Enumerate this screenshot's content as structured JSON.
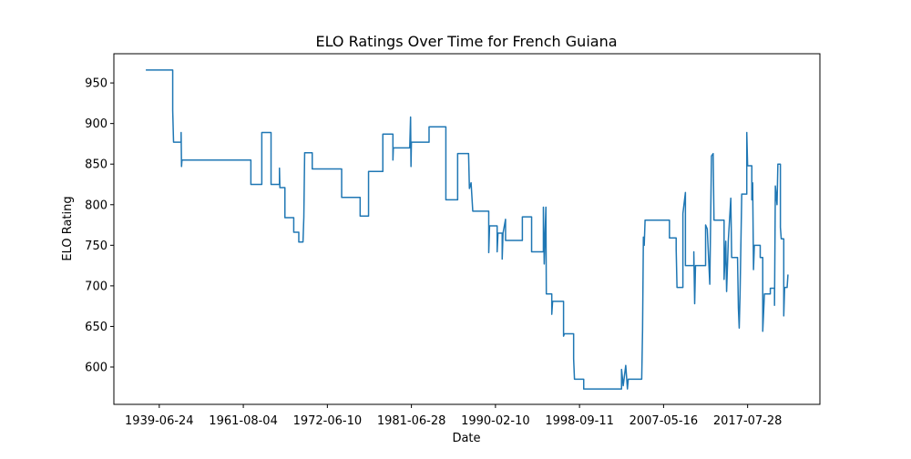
{
  "chart_data": {
    "type": "line",
    "title": "ELO Ratings Over Time for French Guiana",
    "x_label": "Date",
    "y_label": "ELO Rating",
    "color": "#1f77b4",
    "xlim": [
      46,
      886
    ],
    "xticks": [
      {
        "value": 100,
        "label": "1939-06-24"
      },
      {
        "value": 200,
        "label": "1961-08-04"
      },
      {
        "value": 300,
        "label": "1972-06-10"
      },
      {
        "value": 400,
        "label": "1981-06-28"
      },
      {
        "value": 500,
        "label": "1990-02-10"
      },
      {
        "value": 600,
        "label": "1998-09-11"
      },
      {
        "value": 700,
        "label": "2007-05-16"
      },
      {
        "value": 800,
        "label": "2017-07-28"
      }
    ],
    "ylim": [
      554,
      986
    ],
    "yticks": [
      600,
      650,
      700,
      750,
      800,
      850,
      900,
      950
    ],
    "x": [
      84,
      116,
      116,
      117,
      126,
      126,
      126.5,
      127,
      209,
      209,
      222,
      222,
      233,
      233,
      243,
      243,
      243.5,
      249.5,
      249.5,
      260,
      260,
      266,
      266,
      271,
      272,
      273,
      282,
      282,
      317,
      317,
      339,
      339,
      349,
      349,
      366,
      366,
      378,
      378,
      378.5,
      398,
      399,
      399.5,
      400,
      421,
      421,
      441,
      441,
      455,
      455,
      468,
      469,
      471,
      473,
      492,
      492,
      493,
      502,
      502,
      503,
      508,
      508,
      509,
      512,
      512,
      532,
      532,
      543,
      543,
      557,
      557,
      558,
      560,
      560.5,
      567,
      567,
      568,
      581,
      581,
      582,
      593,
      593,
      594,
      605,
      605,
      650,
      650,
      652,
      655,
      657,
      658,
      674,
      675,
      676,
      677,
      678,
      707,
      707,
      715,
      715,
      716,
      723,
      723,
      726,
      726,
      736,
      736,
      737,
      738,
      750,
      750,
      752,
      755,
      757,
      759,
      760,
      772,
      772,
      774,
      775,
      777,
      780,
      781,
      788,
      789,
      790,
      791,
      793,
      799,
      799,
      800,
      805,
      805,
      806,
      807,
      808,
      815,
      815,
      818,
      818,
      820,
      827,
      827,
      832,
      832,
      833,
      835,
      836,
      839,
      839,
      840,
      843,
      843,
      844,
      847,
      848
    ],
    "values": [
      966,
      966,
      916,
      877,
      877,
      889,
      847,
      855,
      855,
      825,
      825,
      889,
      889,
      825,
      825,
      845,
      821,
      821,
      784,
      784,
      766,
      766,
      754,
      754,
      784,
      864,
      864,
      844,
      844,
      809,
      809,
      786,
      786,
      841,
      841,
      887,
      887,
      855,
      870,
      870,
      908,
      847,
      877,
      877,
      896,
      896,
      806,
      806,
      863,
      863,
      820,
      827,
      792,
      792,
      741,
      774,
      774,
      742,
      765,
      765,
      733,
      765,
      782,
      756,
      756,
      785,
      785,
      742,
      742,
      797,
      727,
      797,
      690,
      690,
      665,
      681,
      681,
      638,
      641,
      641,
      610,
      585,
      585,
      573,
      573,
      597,
      577,
      602,
      573,
      585,
      585,
      645,
      760,
      750,
      781,
      781,
      759,
      759,
      745,
      698,
      698,
      789,
      815,
      725,
      725,
      742,
      678,
      725,
      725,
      775,
      770,
      702,
      860,
      863,
      781,
      781,
      708,
      755,
      693,
      755,
      808,
      735,
      735,
      673,
      648,
      690,
      813,
      813,
      889,
      848,
      848,
      806,
      827,
      720,
      750,
      750,
      735,
      735,
      644,
      690,
      690,
      697,
      697,
      676,
      823,
      800,
      850,
      850,
      772,
      758,
      758,
      663,
      698,
      698,
      714
    ]
  }
}
